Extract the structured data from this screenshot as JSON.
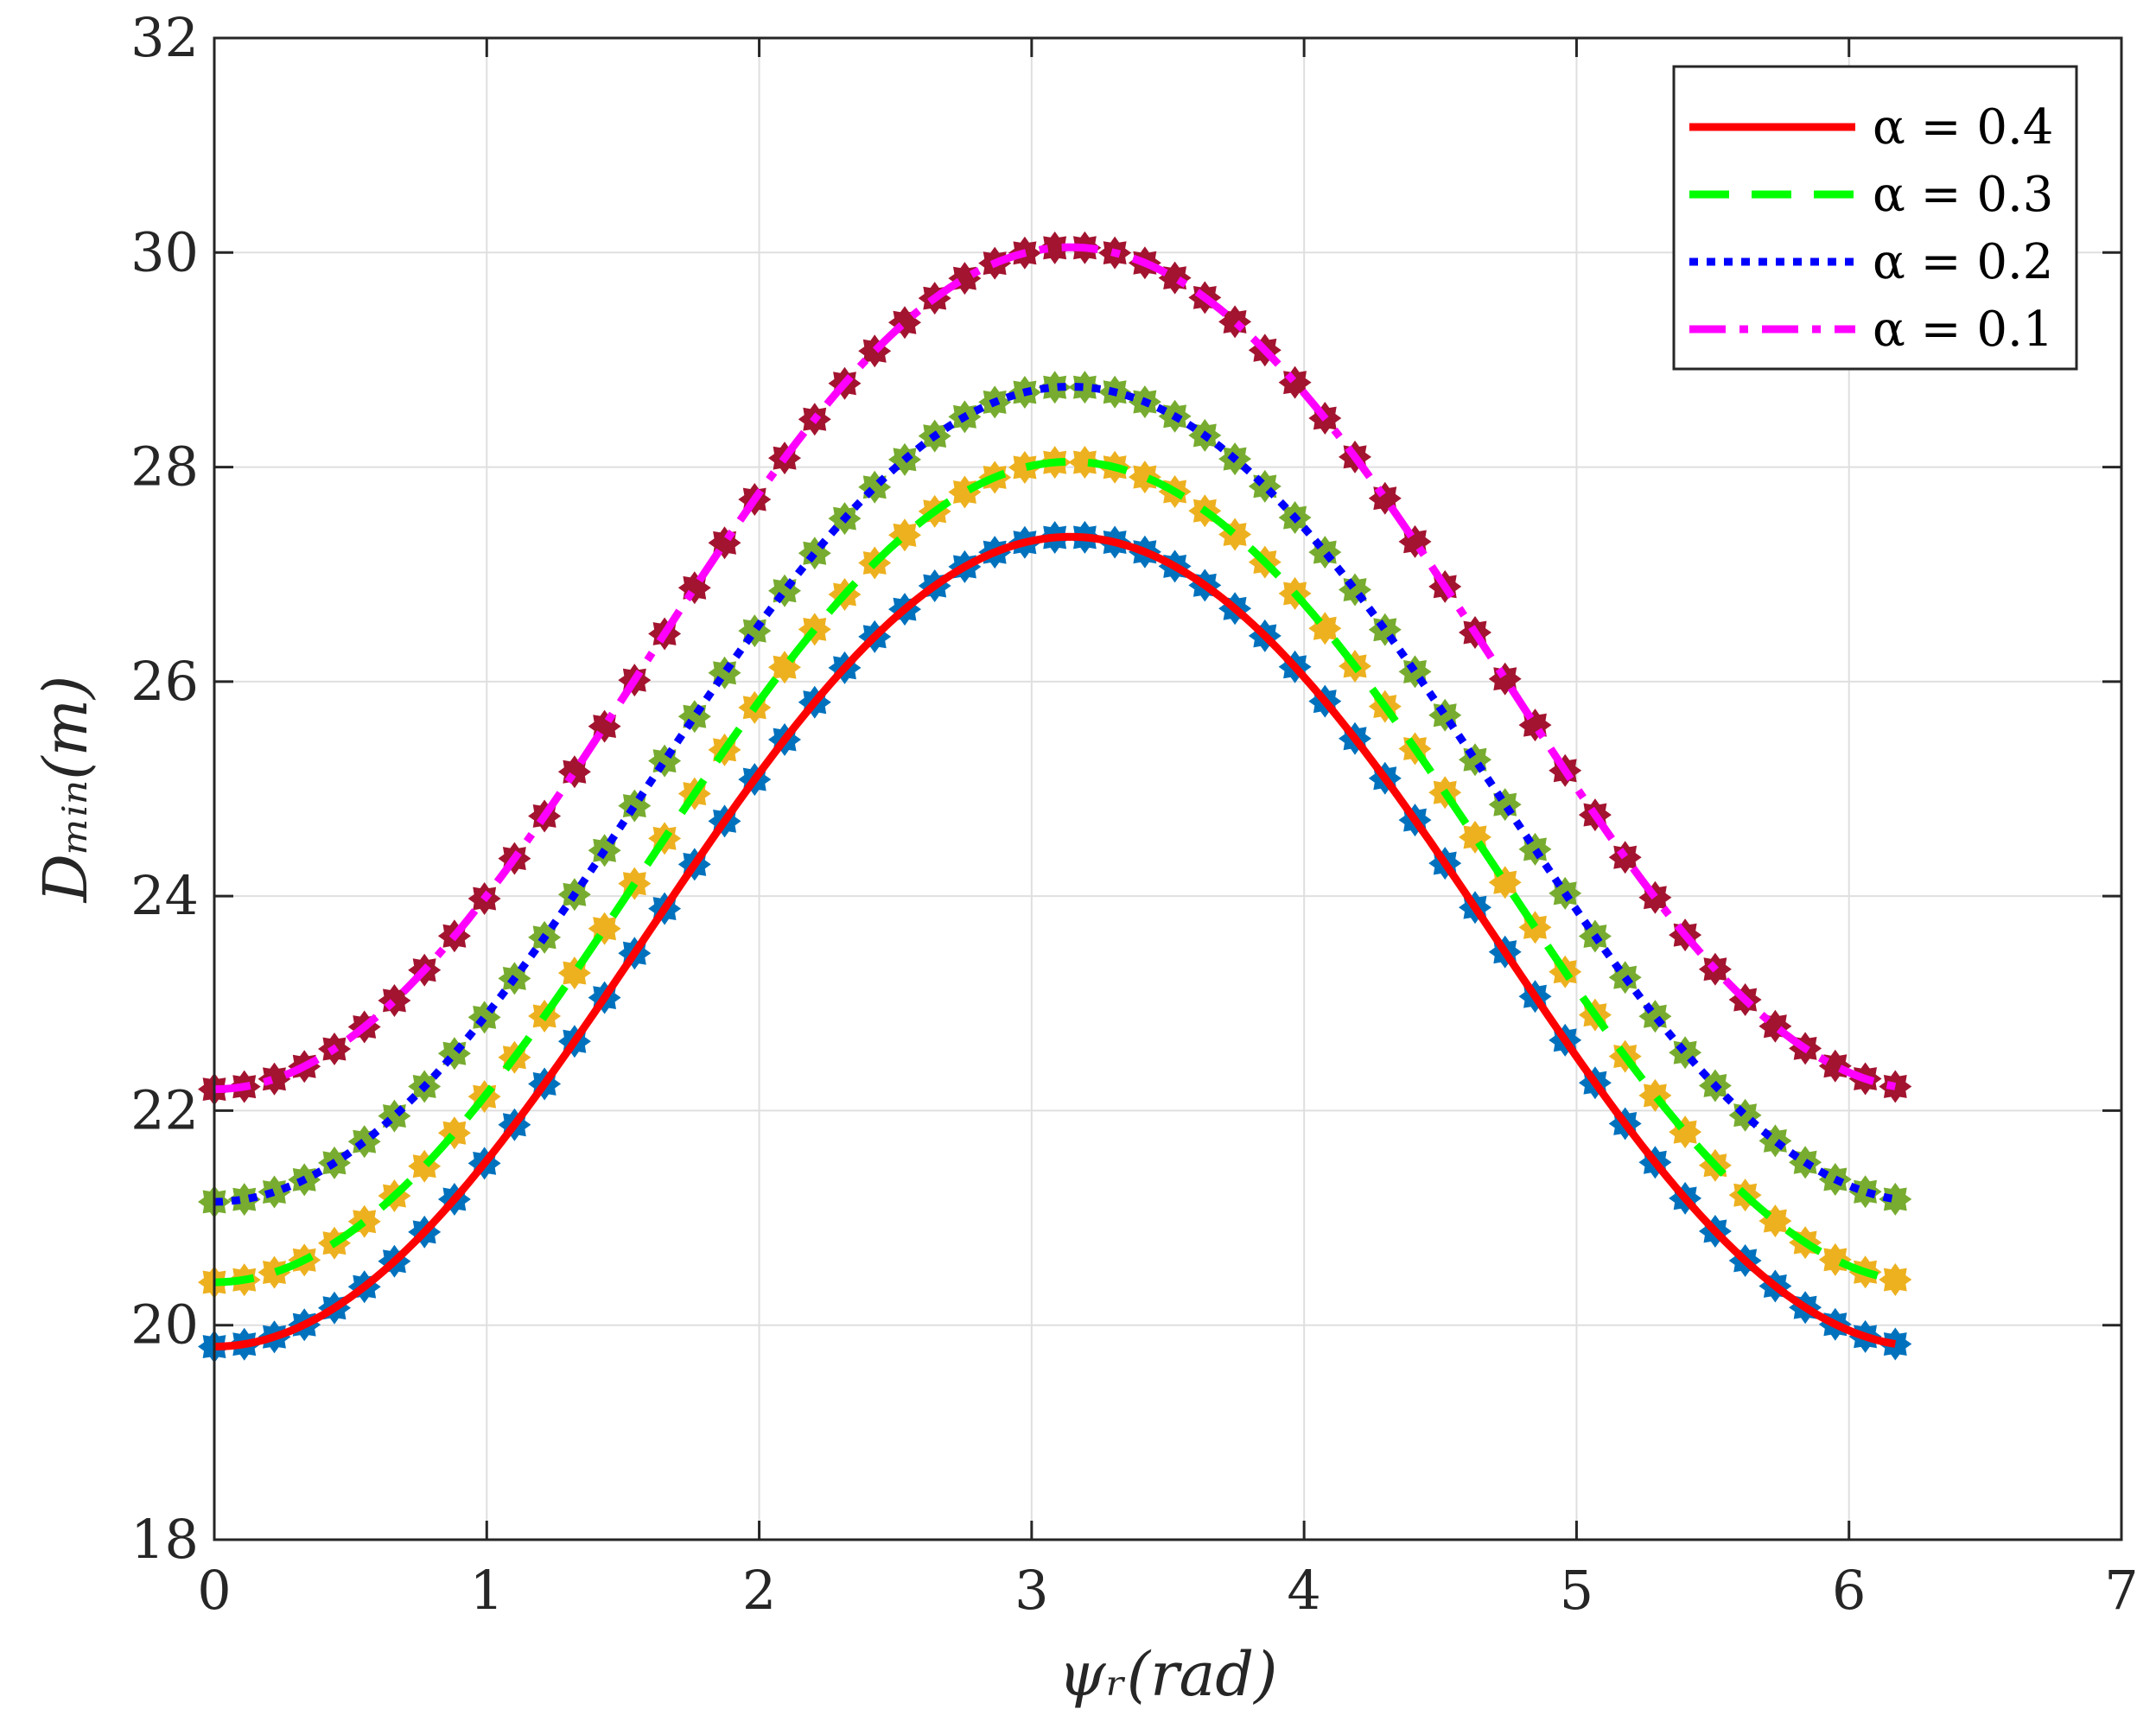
{
  "chart_data": {
    "type": "line",
    "title": "",
    "xlabel": "ψᵣ(rad)",
    "ylabel": "Dₘᵢₙ(m)",
    "xlim": [
      0,
      7
    ],
    "ylim": [
      18,
      32
    ],
    "xticks": [
      0,
      1,
      2,
      3,
      4,
      5,
      6,
      7
    ],
    "yticks": [
      18,
      20,
      22,
      24,
      26,
      28,
      30,
      32
    ],
    "xtick_labels": [
      "0",
      "1",
      "2",
      "3",
      "4",
      "5",
      "6",
      "7"
    ],
    "ytick_labels": [
      "18",
      "20",
      "22",
      "24",
      "26",
      "28",
      "30",
      "32"
    ],
    "grid": true,
    "legend_position": "top-right",
    "x_range": [
      0,
      6.17
    ],
    "n_points": 57,
    "series": [
      {
        "name": "α = 0.4",
        "line_style": "solid",
        "line_color": "#ff0000",
        "marker_color": "#0072bd",
        "min": 19.8,
        "max": 27.35
      },
      {
        "name": "α = 0.3",
        "line_style": "dashed",
        "line_color": "#00ff00",
        "marker_color": "#edb120",
        "min": 20.4,
        "max": 28.05
      },
      {
        "name": "α = 0.2",
        "line_style": "dotted",
        "line_color": "#0000ff",
        "marker_color": "#77ac30",
        "min": 21.15,
        "max": 28.75
      },
      {
        "name": "α = 0.1",
        "line_style": "dashdot",
        "line_color": "#ff00ff",
        "marker_color": "#a2142f",
        "min": 22.2,
        "max": 30.05
      }
    ]
  }
}
